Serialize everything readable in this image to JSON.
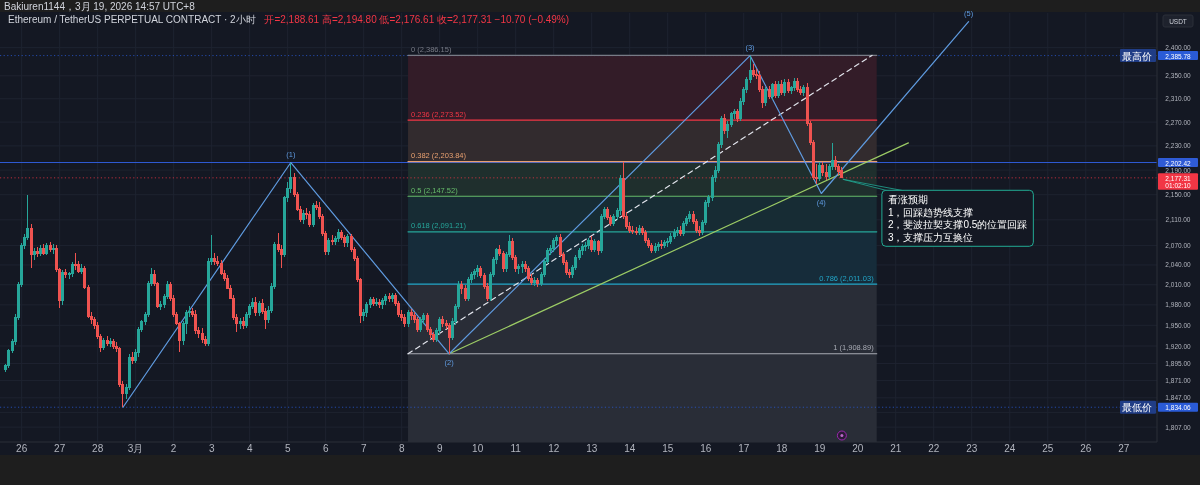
{
  "chart_data": {
    "type": "candlestick",
    "title": "Ethereum / TetherUS PERPETUAL CONTRACT · 2小时",
    "subtitle": "Bakiuren1144，3月 19, 2026 14:57 UTC+8",
    "ylabel": "USDT",
    "log": true,
    "grid": true,
    "xlim": [
      "2026-02-25T10:20",
      "2026-03-27T21:00"
    ],
    "ylim": [
      1787,
      2463
    ],
    "xticks": [
      {
        "value": "2026-02-26",
        "label": "26"
      },
      {
        "value": "2026-02-27",
        "label": "27"
      },
      {
        "value": "2026-02-28",
        "label": "28"
      },
      {
        "value": "2026-03-01",
        "label": "3月"
      },
      {
        "value": "2026-03-02",
        "label": "2"
      },
      {
        "value": "2026-03-03",
        "label": "3"
      },
      {
        "value": "2026-03-04",
        "label": "4"
      },
      {
        "value": "2026-03-05",
        "label": "5"
      },
      {
        "value": "2026-03-06",
        "label": "6"
      },
      {
        "value": "2026-03-07",
        "label": "7"
      },
      {
        "value": "2026-03-08",
        "label": "8"
      },
      {
        "value": "2026-03-09",
        "label": "9"
      },
      {
        "value": "2026-03-10",
        "label": "10"
      },
      {
        "value": "2026-03-11",
        "label": "11"
      },
      {
        "value": "2026-03-12",
        "label": "12"
      },
      {
        "value": "2026-03-13",
        "label": "13"
      },
      {
        "value": "2026-03-14",
        "label": "14"
      },
      {
        "value": "2026-03-15",
        "label": "15"
      },
      {
        "value": "2026-03-16",
        "label": "16"
      },
      {
        "value": "2026-03-17",
        "label": "17"
      },
      {
        "value": "2026-03-18",
        "label": "18"
      },
      {
        "value": "2026-03-19",
        "label": "19"
      },
      {
        "value": "2026-03-20",
        "label": "20"
      },
      {
        "value": "2026-03-21",
        "label": "21"
      },
      {
        "value": "2026-03-22",
        "label": "22"
      },
      {
        "value": "2026-03-23",
        "label": "23"
      },
      {
        "value": "2026-03-24",
        "label": "24"
      },
      {
        "value": "2026-03-25",
        "label": "25"
      },
      {
        "value": "2026-03-26",
        "label": "26"
      },
      {
        "value": "2026-03-27",
        "label": "27"
      }
    ],
    "yticks": [
      {
        "value": 2400,
        "label": "2,400.00"
      },
      {
        "value": 2350,
        "label": "2,350.00"
      },
      {
        "value": 2310,
        "label": "2,310.00"
      },
      {
        "value": 2270,
        "label": "2,270.00"
      },
      {
        "value": 2230,
        "label": "2,230.00"
      },
      {
        "value": 2190,
        "label": "2,190.00"
      },
      {
        "value": 2150,
        "label": "2,150.00"
      },
      {
        "value": 2110,
        "label": "2,110.00"
      },
      {
        "value": 2070,
        "label": "2,070.00"
      },
      {
        "value": 2040,
        "label": "2,040.00"
      },
      {
        "value": 2010,
        "label": "2,010.00"
      },
      {
        "value": 1980,
        "label": "1,980.00"
      },
      {
        "value": 1950,
        "label": "1,950.00"
      },
      {
        "value": 1920,
        "label": "1,920.00"
      },
      {
        "value": 1895,
        "label": "1,895.00"
      },
      {
        "value": 1871,
        "label": "1,871.00"
      },
      {
        "value": 1847,
        "label": "1,847.00"
      },
      {
        "value": 1827,
        "label": null
      },
      {
        "value": 1807,
        "label": "1,807.00"
      }
    ],
    "x": [
      "2026-02-25T14:00",
      "2026-02-25T16:00",
      "2026-02-25T18:00",
      "2026-02-25T20:00",
      "2026-02-25T22:00",
      "2026-02-26T00:00",
      "2026-02-26T02:00",
      "2026-02-26T04:00",
      "2026-02-26T06:00",
      "2026-02-26T08:00",
      "2026-02-26T10:00",
      "2026-02-26T12:00",
      "2026-02-26T14:00",
      "2026-02-26T16:00",
      "2026-02-26T18:00",
      "2026-02-26T20:00",
      "2026-02-26T22:00",
      "2026-02-27T00:00",
      "2026-02-27T02:00",
      "2026-02-27T04:00",
      "2026-02-27T06:00",
      "2026-02-27T08:00",
      "2026-02-27T10:00",
      "2026-02-27T12:00",
      "2026-02-27T14:00",
      "2026-02-27T16:00",
      "2026-02-27T18:00",
      "2026-02-27T20:00",
      "2026-02-27T22:00",
      "2026-02-28T00:00",
      "2026-02-28T02:00",
      "2026-02-28T04:00",
      "2026-02-28T06:00",
      "2026-02-28T08:00",
      "2026-02-28T10:00",
      "2026-02-28T12:00",
      "2026-02-28T14:00",
      "2026-02-28T16:00",
      "2026-02-28T18:00",
      "2026-02-28T20:00",
      "2026-02-28T22:00",
      "2026-03-01T00:00",
      "2026-03-01T02:00",
      "2026-03-01T04:00",
      "2026-03-01T06:00",
      "2026-03-01T08:00",
      "2026-03-01T10:00",
      "2026-03-01T12:00",
      "2026-03-01T14:00",
      "2026-03-01T16:00",
      "2026-03-01T18:00",
      "2026-03-01T20:00",
      "2026-03-01T22:00",
      "2026-03-02T00:00",
      "2026-03-02T02:00",
      "2026-03-02T04:00",
      "2026-03-02T06:00",
      "2026-03-02T08:00",
      "2026-03-02T10:00",
      "2026-03-02T12:00",
      "2026-03-02T14:00",
      "2026-03-02T16:00",
      "2026-03-02T18:00",
      "2026-03-02T20:00",
      "2026-03-02T22:00",
      "2026-03-03T00:00",
      "2026-03-03T02:00",
      "2026-03-03T04:00",
      "2026-03-03T06:00",
      "2026-03-03T08:00",
      "2026-03-03T10:00",
      "2026-03-03T12:00",
      "2026-03-03T14:00",
      "2026-03-03T16:00",
      "2026-03-03T18:00",
      "2026-03-03T20:00",
      "2026-03-03T22:00",
      "2026-03-04T00:00",
      "2026-03-04T02:00",
      "2026-03-04T04:00",
      "2026-03-04T06:00",
      "2026-03-04T08:00",
      "2026-03-04T10:00",
      "2026-03-04T12:00",
      "2026-03-04T14:00",
      "2026-03-04T16:00",
      "2026-03-04T18:00",
      "2026-03-04T20:00",
      "2026-03-04T22:00",
      "2026-03-05T00:00",
      "2026-03-05T02:00",
      "2026-03-05T04:00",
      "2026-03-05T06:00",
      "2026-03-05T08:00",
      "2026-03-05T10:00",
      "2026-03-05T12:00",
      "2026-03-05T14:00",
      "2026-03-05T16:00",
      "2026-03-05T18:00",
      "2026-03-05T20:00",
      "2026-03-05T22:00",
      "2026-03-06T00:00",
      "2026-03-06T02:00",
      "2026-03-06T04:00",
      "2026-03-06T06:00",
      "2026-03-06T08:00",
      "2026-03-06T10:00",
      "2026-03-06T12:00",
      "2026-03-06T14:00",
      "2026-03-06T16:00",
      "2026-03-06T18:00",
      "2026-03-06T20:00",
      "2026-03-06T22:00",
      "2026-03-07T00:00",
      "2026-03-07T02:00",
      "2026-03-07T04:00",
      "2026-03-07T06:00",
      "2026-03-07T08:00",
      "2026-03-07T10:00",
      "2026-03-07T12:00",
      "2026-03-07T14:00",
      "2026-03-07T16:00",
      "2026-03-07T18:00",
      "2026-03-07T20:00",
      "2026-03-07T22:00",
      "2026-03-08T00:00",
      "2026-03-08T02:00",
      "2026-03-08T04:00",
      "2026-03-08T06:00",
      "2026-03-08T08:00",
      "2026-03-08T10:00",
      "2026-03-08T12:00",
      "2026-03-08T14:00",
      "2026-03-08T16:00",
      "2026-03-08T18:00",
      "2026-03-08T20:00",
      "2026-03-08T22:00",
      "2026-03-09T00:00",
      "2026-03-09T02:00",
      "2026-03-09T04:00",
      "2026-03-09T06:00",
      "2026-03-09T08:00",
      "2026-03-09T10:00",
      "2026-03-09T12:00",
      "2026-03-09T14:00",
      "2026-03-09T16:00",
      "2026-03-09T18:00",
      "2026-03-09T20:00",
      "2026-03-09T22:00",
      "2026-03-10T00:00",
      "2026-03-10T02:00",
      "2026-03-10T04:00",
      "2026-03-10T06:00",
      "2026-03-10T08:00",
      "2026-03-10T10:00",
      "2026-03-10T12:00",
      "2026-03-10T14:00",
      "2026-03-10T16:00",
      "2026-03-10T18:00",
      "2026-03-10T20:00",
      "2026-03-10T22:00",
      "2026-03-11T00:00",
      "2026-03-11T02:00",
      "2026-03-11T04:00",
      "2026-03-11T06:00",
      "2026-03-11T08:00",
      "2026-03-11T10:00",
      "2026-03-11T12:00",
      "2026-03-11T14:00",
      "2026-03-11T16:00",
      "2026-03-11T18:00",
      "2026-03-11T20:00",
      "2026-03-11T22:00",
      "2026-03-12T00:00",
      "2026-03-12T02:00",
      "2026-03-12T04:00",
      "2026-03-12T06:00",
      "2026-03-12T08:00",
      "2026-03-12T10:00",
      "2026-03-12T12:00",
      "2026-03-12T14:00",
      "2026-03-12T16:00",
      "2026-03-12T18:00",
      "2026-03-12T20:00",
      "2026-03-12T22:00",
      "2026-03-13T00:00",
      "2026-03-13T02:00",
      "2026-03-13T04:00",
      "2026-03-13T06:00",
      "2026-03-13T08:00",
      "2026-03-13T10:00",
      "2026-03-13T12:00",
      "2026-03-13T14:00",
      "2026-03-13T16:00",
      "2026-03-13T18:00",
      "2026-03-13T20:00",
      "2026-03-13T22:00",
      "2026-03-14T00:00",
      "2026-03-14T02:00",
      "2026-03-14T04:00",
      "2026-03-14T06:00",
      "2026-03-14T08:00",
      "2026-03-14T10:00",
      "2026-03-14T12:00",
      "2026-03-14T14:00",
      "2026-03-14T16:00",
      "2026-03-14T18:00",
      "2026-03-14T20:00",
      "2026-03-14T22:00",
      "2026-03-15T00:00",
      "2026-03-15T02:00",
      "2026-03-15T04:00",
      "2026-03-15T06:00",
      "2026-03-15T08:00",
      "2026-03-15T10:00",
      "2026-03-15T12:00",
      "2026-03-15T14:00",
      "2026-03-15T16:00",
      "2026-03-15T18:00",
      "2026-03-15T20:00",
      "2026-03-15T22:00",
      "2026-03-16T00:00",
      "2026-03-16T02:00",
      "2026-03-16T04:00",
      "2026-03-16T06:00",
      "2026-03-16T08:00",
      "2026-03-16T10:00",
      "2026-03-16T12:00",
      "2026-03-16T14:00",
      "2026-03-16T16:00",
      "2026-03-16T18:00",
      "2026-03-16T20:00",
      "2026-03-16T22:00",
      "2026-03-17T00:00",
      "2026-03-17T02:00",
      "2026-03-17T04:00",
      "2026-03-17T06:00",
      "2026-03-17T08:00",
      "2026-03-17T10:00",
      "2026-03-17T12:00",
      "2026-03-17T14:00",
      "2026-03-17T16:00",
      "2026-03-17T18:00",
      "2026-03-17T20:00",
      "2026-03-17T22:00",
      "2026-03-18T00:00",
      "2026-03-18T02:00",
      "2026-03-18T04:00",
      "2026-03-18T06:00",
      "2026-03-18T08:00",
      "2026-03-18T10:00",
      "2026-03-18T12:00",
      "2026-03-18T14:00",
      "2026-03-18T16:00",
      "2026-03-18T18:00",
      "2026-03-18T20:00",
      "2026-03-18T22:00",
      "2026-03-19T00:00",
      "2026-03-19T02:00",
      "2026-03-19T04:00",
      "2026-03-19T06:00",
      "2026-03-19T08:00",
      "2026-03-19T10:00",
      "2026-03-19T12:00",
      "2026-03-19T14:00"
    ],
    "ohlc": [
      [
        1886,
        1895,
        1883,
        1892
      ],
      [
        1892,
        1916,
        1888,
        1914
      ],
      [
        1914,
        1930,
        1910,
        1926
      ],
      [
        1926,
        1966,
        1922,
        1962
      ],
      [
        1962,
        2014,
        1958,
        2010
      ],
      [
        2010,
        2074,
        2006,
        2070
      ],
      [
        2070,
        2088,
        2064,
        2082
      ],
      [
        2082,
        2150,
        2078,
        2096
      ],
      [
        2096,
        2104,
        2035,
        2056
      ],
      [
        2056,
        2066,
        2048,
        2060
      ],
      [
        2060,
        2068,
        2052,
        2058
      ],
      [
        2058,
        2070,
        2054,
        2066
      ],
      [
        2066,
        2072,
        2056,
        2058
      ],
      [
        2058,
        2074,
        2055,
        2070
      ],
      [
        2070,
        2076,
        2060,
        2064
      ],
      [
        2064,
        2072,
        2057,
        2066
      ],
      [
        2066,
        2070,
        2030,
        2033
      ],
      [
        2033,
        2036,
        1975,
        1987
      ],
      [
        1987,
        2032,
        1980,
        2028
      ],
      [
        2028,
        2034,
        2020,
        2025
      ],
      [
        2025,
        2030,
        2018,
        2027
      ],
      [
        2027,
        2045,
        2022,
        2041
      ],
      [
        2041,
        2058,
        2032,
        2040
      ],
      [
        2040,
        2046,
        2028,
        2030
      ],
      [
        2030,
        2042,
        2026,
        2034
      ],
      [
        2034,
        2038,
        2004,
        2006
      ],
      [
        2006,
        2010,
        1960,
        1963
      ],
      [
        1963,
        1970,
        1952,
        1958
      ],
      [
        1958,
        1962,
        1945,
        1950
      ],
      [
        1950,
        1955,
        1930,
        1934
      ],
      [
        1934,
        1937,
        1912,
        1918
      ],
      [
        1918,
        1932,
        1914,
        1928
      ],
      [
        1928,
        1934,
        1920,
        1924
      ],
      [
        1924,
        1932,
        1918,
        1926
      ],
      [
        1926,
        1930,
        1915,
        1920
      ],
      [
        1920,
        1926,
        1912,
        1916
      ],
      [
        1916,
        1919,
        1862,
        1865
      ],
      [
        1865,
        1870,
        1834.06,
        1853
      ],
      [
        1853,
        1866,
        1846,
        1862
      ],
      [
        1862,
        1908,
        1858,
        1904
      ],
      [
        1904,
        1912,
        1895,
        1900
      ],
      [
        1900,
        1915,
        1896,
        1910
      ],
      [
        1910,
        1948,
        1905,
        1944
      ],
      [
        1944,
        1958,
        1940,
        1955
      ],
      [
        1955,
        1970,
        1950,
        1966
      ],
      [
        1966,
        2016,
        1962,
        2012
      ],
      [
        2012,
        2035,
        2008,
        2025
      ],
      [
        2025,
        2032,
        2008,
        2012
      ],
      [
        2012,
        2014,
        1975,
        1978
      ],
      [
        1978,
        1985,
        1972,
        1980
      ],
      [
        1980,
        1996,
        1976,
        1992
      ],
      [
        1992,
        2016,
        1988,
        2010
      ],
      [
        2010,
        2014,
        1986,
        1990
      ],
      [
        1990,
        1995,
        1962,
        1966
      ],
      [
        1966,
        1970,
        1950,
        1952
      ],
      [
        1952,
        1955,
        1912,
        1928
      ],
      [
        1928,
        1956,
        1922,
        1952
      ],
      [
        1952,
        1972,
        1938,
        1968
      ],
      [
        1968,
        1978,
        1962,
        1970
      ],
      [
        1970,
        1976,
        1962,
        1966
      ],
      [
        1966,
        1972,
        1938,
        1942
      ],
      [
        1942,
        1948,
        1932,
        1938
      ],
      [
        1938,
        1946,
        1924,
        1930
      ],
      [
        1930,
        1934,
        1920,
        1924
      ],
      [
        1924,
        2050,
        1920,
        2046
      ],
      [
        2046,
        2086,
        2040,
        2050
      ],
      [
        2050,
        2058,
        2040,
        2046
      ],
      [
        2046,
        2054,
        2038,
        2042
      ],
      [
        2042,
        2048,
        2024,
        2027
      ],
      [
        2027,
        2032,
        2016,
        2020
      ],
      [
        2020,
        2024,
        2003,
        2005
      ],
      [
        2005,
        2010,
        1988,
        1990
      ],
      [
        1990,
        1994,
        1958,
        1962
      ],
      [
        1962,
        1966,
        1940,
        1952
      ],
      [
        1952,
        1960,
        1945,
        1955
      ],
      [
        1955,
        1962,
        1944,
        1950
      ],
      [
        1950,
        1970,
        1946,
        1966
      ],
      [
        1966,
        1982,
        1960,
        1978
      ],
      [
        1978,
        1990,
        1974,
        1984
      ],
      [
        1984,
        1992,
        1964,
        1968
      ],
      [
        1968,
        1986,
        1964,
        1982
      ],
      [
        1982,
        1988,
        1966,
        1970
      ],
      [
        1970,
        1975,
        1944,
        1958
      ],
      [
        1958,
        1978,
        1954,
        1972
      ],
      [
        1972,
        2012,
        1968,
        2008
      ],
      [
        2008,
        2076,
        2004,
        2072
      ],
      [
        2072,
        2090,
        2060,
        2064
      ],
      [
        2064,
        2070,
        2036,
        2056
      ],
      [
        2056,
        2148,
        2052,
        2146
      ],
      [
        2146,
        2170,
        2138,
        2160
      ],
      [
        2160,
        2202.42,
        2152,
        2178
      ],
      [
        2178,
        2186,
        2146,
        2150
      ],
      [
        2150,
        2155,
        2124,
        2127
      ],
      [
        2127,
        2132,
        2106,
        2110
      ],
      [
        2110,
        2126,
        2104,
        2120
      ],
      [
        2120,
        2128,
        2112,
        2118
      ],
      [
        2118,
        2124,
        2098,
        2102
      ],
      [
        2102,
        2136,
        2098,
        2132
      ],
      [
        2132,
        2140,
        2126,
        2130
      ],
      [
        2130,
        2138,
        2112,
        2116
      ],
      [
        2116,
        2120,
        2084,
        2088
      ],
      [
        2088,
        2092,
        2056,
        2060
      ],
      [
        2060,
        2082,
        2056,
        2078
      ],
      [
        2078,
        2086,
        2070,
        2076
      ],
      [
        2076,
        2084,
        2070,
        2080
      ],
      [
        2080,
        2096,
        2076,
        2090
      ],
      [
        2090,
        2094,
        2078,
        2082
      ],
      [
        2082,
        2086,
        2068,
        2074
      ],
      [
        2074,
        2088,
        2068,
        2084
      ],
      [
        2084,
        2088,
        2060,
        2064
      ],
      [
        2064,
        2068,
        2046,
        2050
      ],
      [
        2050,
        2054,
        2014,
        2018
      ],
      [
        2018,
        2020,
        1954,
        1964
      ],
      [
        1964,
        1974,
        1956,
        1968
      ],
      [
        1968,
        1984,
        1962,
        1980
      ],
      [
        1980,
        1992,
        1976,
        1988
      ],
      [
        1988,
        1992,
        1978,
        1982
      ],
      [
        1982,
        1990,
        1978,
        1984
      ],
      [
        1984,
        1988,
        1976,
        1980
      ],
      [
        1980,
        1990,
        1974,
        1986
      ],
      [
        1986,
        1996,
        1980,
        1992
      ],
      [
        1992,
        1998,
        1984,
        1990
      ],
      [
        1990,
        1998,
        1984,
        1994
      ],
      [
        1994,
        1998,
        1978,
        1982
      ],
      [
        1982,
        1986,
        1962,
        1966
      ],
      [
        1966,
        1972,
        1956,
        1962
      ],
      [
        1962,
        1966,
        1948,
        1952
      ],
      [
        1952,
        1972,
        1948,
        1968
      ],
      [
        1968,
        1974,
        1958,
        1964
      ],
      [
        1964,
        1970,
        1954,
        1958
      ],
      [
        1958,
        1962,
        1940,
        1944
      ],
      [
        1944,
        1962,
        1940,
        1958
      ],
      [
        1958,
        1968,
        1952,
        1964
      ],
      [
        1964,
        1968,
        1940,
        1944
      ],
      [
        1944,
        1948,
        1932,
        1936
      ],
      [
        1936,
        1940,
        1926,
        1930
      ],
      [
        1930,
        1946,
        1926,
        1942
      ],
      [
        1942,
        1962,
        1936,
        1958
      ],
      [
        1958,
        1964,
        1948,
        1952
      ],
      [
        1952,
        1958,
        1944,
        1950
      ],
      [
        1950,
        1954,
        1908.89,
        1932
      ],
      [
        1932,
        1960,
        1928,
        1956
      ],
      [
        1956,
        1982,
        1950,
        1978
      ],
      [
        1978,
        2016,
        1974,
        2010
      ],
      [
        2010,
        2016,
        1996,
        2004
      ],
      [
        2004,
        2010,
        1986,
        1990
      ],
      [
        1990,
        2022,
        1986,
        2018
      ],
      [
        2018,
        2030,
        2012,
        2026
      ],
      [
        2026,
        2034,
        2018,
        2030
      ],
      [
        2030,
        2040,
        2022,
        2034
      ],
      [
        2034,
        2038,
        2020,
        2024
      ],
      [
        2024,
        2028,
        2004,
        2008
      ],
      [
        2008,
        2012,
        1986,
        1990
      ],
      [
        1990,
        2030,
        1986,
        2026
      ],
      [
        2026,
        2052,
        2022,
        2048
      ],
      [
        2048,
        2066,
        2042,
        2064
      ],
      [
        2064,
        2070,
        2054,
        2058
      ],
      [
        2058,
        2062,
        2030,
        2034
      ],
      [
        2034,
        2060,
        2030,
        2056
      ],
      [
        2056,
        2086,
        2052,
        2076
      ],
      [
        2076,
        2082,
        2048,
        2052
      ],
      [
        2052,
        2056,
        2030,
        2034
      ],
      [
        2034,
        2042,
        2026,
        2038
      ],
      [
        2038,
        2046,
        2028,
        2040
      ],
      [
        2040,
        2046,
        2030,
        2034
      ],
      [
        2034,
        2038,
        2016,
        2020
      ],
      [
        2020,
        2026,
        2010,
        2014
      ],
      [
        2014,
        2022,
        2008,
        2016
      ],
      [
        2016,
        2020,
        2006,
        2012
      ],
      [
        2012,
        2030,
        2008,
        2026
      ],
      [
        2026,
        2050,
        2022,
        2046
      ],
      [
        2046,
        2066,
        2042,
        2062
      ],
      [
        2062,
        2070,
        2056,
        2066
      ],
      [
        2066,
        2082,
        2060,
        2078
      ],
      [
        2078,
        2086,
        2070,
        2082
      ],
      [
        2082,
        2088,
        2052,
        2056
      ],
      [
        2056,
        2060,
        2040,
        2044
      ],
      [
        2044,
        2048,
        2024,
        2028
      ],
      [
        2028,
        2034,
        2020,
        2026
      ],
      [
        2026,
        2040,
        2020,
        2036
      ],
      [
        2036,
        2056,
        2032,
        2052
      ],
      [
        2052,
        2066,
        2048,
        2062
      ],
      [
        2062,
        2072,
        2056,
        2068
      ],
      [
        2068,
        2076,
        2062,
        2070
      ],
      [
        2070,
        2082,
        2064,
        2078
      ],
      [
        2078,
        2084,
        2060,
        2064
      ],
      [
        2064,
        2080,
        2060,
        2076
      ],
      [
        2076,
        2078,
        2056,
        2062
      ],
      [
        2062,
        2120,
        2058,
        2116
      ],
      [
        2116,
        2130,
        2112,
        2126
      ],
      [
        2126,
        2130,
        2110,
        2114
      ],
      [
        2114,
        2118,
        2100,
        2104
      ],
      [
        2104,
        2120,
        2100,
        2116
      ],
      [
        2116,
        2128,
        2110,
        2124
      ],
      [
        2124,
        2182,
        2118,
        2176
      ],
      [
        2176,
        2203,
        2112,
        2116
      ],
      [
        2116,
        2122,
        2096,
        2100
      ],
      [
        2100,
        2106,
        2090,
        2094
      ],
      [
        2094,
        2100,
        2088,
        2092
      ],
      [
        2092,
        2098,
        2086,
        2090
      ],
      [
        2090,
        2102,
        2086,
        2096
      ],
      [
        2096,
        2100,
        2086,
        2090
      ],
      [
        2090,
        2094,
        2074,
        2078
      ],
      [
        2078,
        2082,
        2066,
        2070
      ],
      [
        2070,
        2074,
        2058,
        2062
      ],
      [
        2062,
        2074,
        2058,
        2068
      ],
      [
        2068,
        2076,
        2062,
        2072
      ],
      [
        2072,
        2078,
        2064,
        2070
      ],
      [
        2070,
        2078,
        2066,
        2074
      ],
      [
        2074,
        2082,
        2068,
        2076
      ],
      [
        2076,
        2090,
        2072,
        2084
      ],
      [
        2084,
        2096,
        2080,
        2090
      ],
      [
        2090,
        2098,
        2084,
        2094
      ],
      [
        2094,
        2100,
        2084,
        2088
      ],
      [
        2088,
        2108,
        2084,
        2104
      ],
      [
        2104,
        2116,
        2100,
        2112
      ],
      [
        2112,
        2124,
        2106,
        2118
      ],
      [
        2118,
        2124,
        2104,
        2108
      ],
      [
        2108,
        2112,
        2090,
        2094
      ],
      [
        2094,
        2100,
        2084,
        2090
      ],
      [
        2090,
        2110,
        2086,
        2106
      ],
      [
        2106,
        2142,
        2102,
        2138
      ],
      [
        2138,
        2150,
        2130,
        2146
      ],
      [
        2146,
        2182,
        2140,
        2178
      ],
      [
        2178,
        2196,
        2170,
        2190
      ],
      [
        2190,
        2236,
        2186,
        2232
      ],
      [
        2232,
        2280,
        2226,
        2276
      ],
      [
        2276,
        2284,
        2250,
        2256
      ],
      [
        2256,
        2272,
        2244,
        2266
      ],
      [
        2266,
        2288,
        2262,
        2284
      ],
      [
        2284,
        2292,
        2276,
        2288
      ],
      [
        2288,
        2292,
        2270,
        2276
      ],
      [
        2276,
        2312,
        2272,
        2306
      ],
      [
        2306,
        2330,
        2300,
        2326
      ],
      [
        2326,
        2348,
        2320,
        2344
      ],
      [
        2344,
        2385.78,
        2338,
        2360
      ],
      [
        2360,
        2370,
        2348,
        2352
      ],
      [
        2352,
        2362,
        2344,
        2350
      ],
      [
        2350,
        2358,
        2322,
        2326
      ],
      [
        2326,
        2332,
        2294,
        2304
      ],
      [
        2304,
        2330,
        2298,
        2326
      ],
      [
        2326,
        2332,
        2310,
        2314
      ],
      [
        2314,
        2338,
        2308,
        2334
      ],
      [
        2334,
        2340,
        2312,
        2316
      ],
      [
        2316,
        2340,
        2312,
        2334
      ],
      [
        2334,
        2342,
        2316,
        2320
      ],
      [
        2320,
        2344,
        2314,
        2338
      ],
      [
        2338,
        2344,
        2320,
        2324
      ],
      [
        2324,
        2332,
        2318,
        2330
      ],
      [
        2330,
        2346,
        2324,
        2340
      ],
      [
        2340,
        2346,
        2322,
        2326
      ],
      [
        2326,
        2332,
        2316,
        2320
      ],
      [
        2320,
        2334,
        2314,
        2330
      ],
      [
        2330,
        2338,
        2264,
        2268
      ],
      [
        2268,
        2272,
        2232,
        2236
      ],
      [
        2236,
        2240,
        2174,
        2178
      ],
      [
        2178,
        2200,
        2168,
        2176
      ],
      [
        2176,
        2204,
        2172,
        2198
      ],
      [
        2198,
        2204,
        2180,
        2186
      ],
      [
        2186,
        2200,
        2174,
        2180
      ],
      [
        2180,
        2200,
        2176,
        2196
      ],
      [
        2196,
        2234,
        2190,
        2206
      ],
      [
        2206,
        2214,
        2190,
        2196
      ],
      [
        2196,
        2200,
        2182,
        2188.01
      ],
      [
        2188.61,
        2194.8,
        2176.61,
        2177.31
      ]
    ],
    "series": [
      {
        "type": "line",
        "name": "0 (2,386.15)",
        "color": "#787b86",
        "x": [
          "2026-03-08T04:00",
          "2026-03-20T12:00"
        ],
        "values": [
          2386.15,
          2386.15
        ]
      },
      {
        "type": "line",
        "name": "0.236 (2,273.52)",
        "color": "#f23645",
        "x": [
          "2026-03-08T04:00",
          "2026-03-20T12:00"
        ],
        "values": [
          2273.52,
          2273.52
        ],
        "lower": [
          2273.52,
          2273.52
        ],
        "upper": [
          2386.15,
          2386.15
        ]
      },
      {
        "type": "line",
        "name": "0.382 (2,203.84)",
        "color": "#e8a070",
        "x": [
          "2026-03-08T04:00",
          "2026-03-20T12:00"
        ],
        "values": [
          2203.84,
          2203.84
        ],
        "lower": [
          2203.84,
          2203.84
        ],
        "upper": [
          2273.52,
          2273.52
        ]
      },
      {
        "type": "line",
        "name": "0.5 (2,147.52)",
        "color": "#66bb6a",
        "x": [
          "2026-03-08T04:00",
          "2026-03-20T12:00"
        ],
        "values": [
          2147.52,
          2147.52
        ],
        "lower": [
          2147.52,
          2147.52
        ],
        "upper": [
          2203.84,
          2203.84
        ]
      },
      {
        "type": "line",
        "name": "0.618 (2,091.21)",
        "color": "#26a69a",
        "x": [
          "2026-03-08T04:00",
          "2026-03-20T12:00"
        ],
        "values": [
          2091.21,
          2091.21
        ],
        "lower": [
          2091.21,
          2091.21
        ],
        "upper": [
          2147.52,
          2147.52
        ]
      },
      {
        "type": "line",
        "name": "0.786 (2,011.03)",
        "color": "#22a6c8",
        "x": [
          "2026-03-08T04:00",
          "2026-03-20T12:00"
        ],
        "values": [
          2011.03,
          2011.03
        ],
        "lower": [
          2011.03,
          2011.03
        ],
        "upper": [
          2091.21,
          2091.21
        ]
      },
      {
        "type": "line",
        "name": "1 (1,908.89)",
        "color": "#a8abb4",
        "x": [
          "2026-03-08T04:00",
          "2026-03-20T12:00"
        ],
        "values": [
          1908.89,
          1908.89
        ],
        "lower": [
          1787,
          1787
        ],
        "upper": [
          2011.03,
          2011.03
        ]
      },
      {
        "type": "line",
        "color": "#e0e3eb",
        "line_style": "dashed",
        "x": [
          "2026-03-08T04:00",
          "2026-03-20T09:00"
        ],
        "values": [
          1908.89,
          2386.15
        ]
      },
      {
        "type": "line",
        "color": "#9ccc65",
        "x": [
          "2026-03-09T06:00",
          "2026-03-21T08:00"
        ],
        "values": [
          1908.89,
          2235
        ]
      },
      {
        "type": "line",
        "color": "#5f9be0",
        "x": [
          "2026-02-28T16:00",
          "2026-03-05T02:00",
          "2026-03-09T06:00",
          "2026-03-17T04:00",
          "2026-03-19T01:00",
          "2026-03-22T22:00"
        ],
        "values": [
          1834.06,
          2202.42,
          1908.89,
          2385.78,
          2152,
          2447
        ]
      }
    ],
    "ref_lines": [
      {
        "axis": "y",
        "value": 2385.78,
        "label": "最高价 2,385.78",
        "color": "#2a5bd7",
        "line_style": "dotted"
      },
      {
        "axis": "y",
        "value": 1834.06,
        "label": "最低价 1,834.06",
        "color": "#2a5bd7",
        "line_style": "dotted"
      },
      {
        "axis": "y",
        "value": 2202.42,
        "label": "2,202.42",
        "color": "#2f5bd6"
      },
      {
        "axis": "y",
        "value": 2177.31,
        "label": "2,177.31",
        "color": "#f23645",
        "line_style": "dotted"
      }
    ],
    "annotations": [
      "开=2,188.61 高=2,194.80 低=2,176.61 收=2,177.31 −10.70 (−0.49%)",
      "01:02:10",
      {
        "text": "(1)",
        "x": "2026-03-05T02:00",
        "y": 2202.42
      },
      {
        "text": "(2)",
        "x": "2026-03-09T06:00",
        "y": 1908.89
      },
      {
        "text": "(3)",
        "x": "2026-03-17T04:00",
        "y": 2385.78
      },
      {
        "text": "(4)",
        "x": "2026-03-19T01:00",
        "y": 2152
      },
      {
        "text": "(5)",
        "x": "2026-03-22T22:00",
        "y": 2447
      },
      {
        "text": "看涨预期\n1，回踩趋势线支撑\n2，斐波拉契支撑0.5的位置回踩\n3，支撑压力互换位",
        "x": "2026-03-19T14:00",
        "y": 2176.61
      }
    ]
  }
}
